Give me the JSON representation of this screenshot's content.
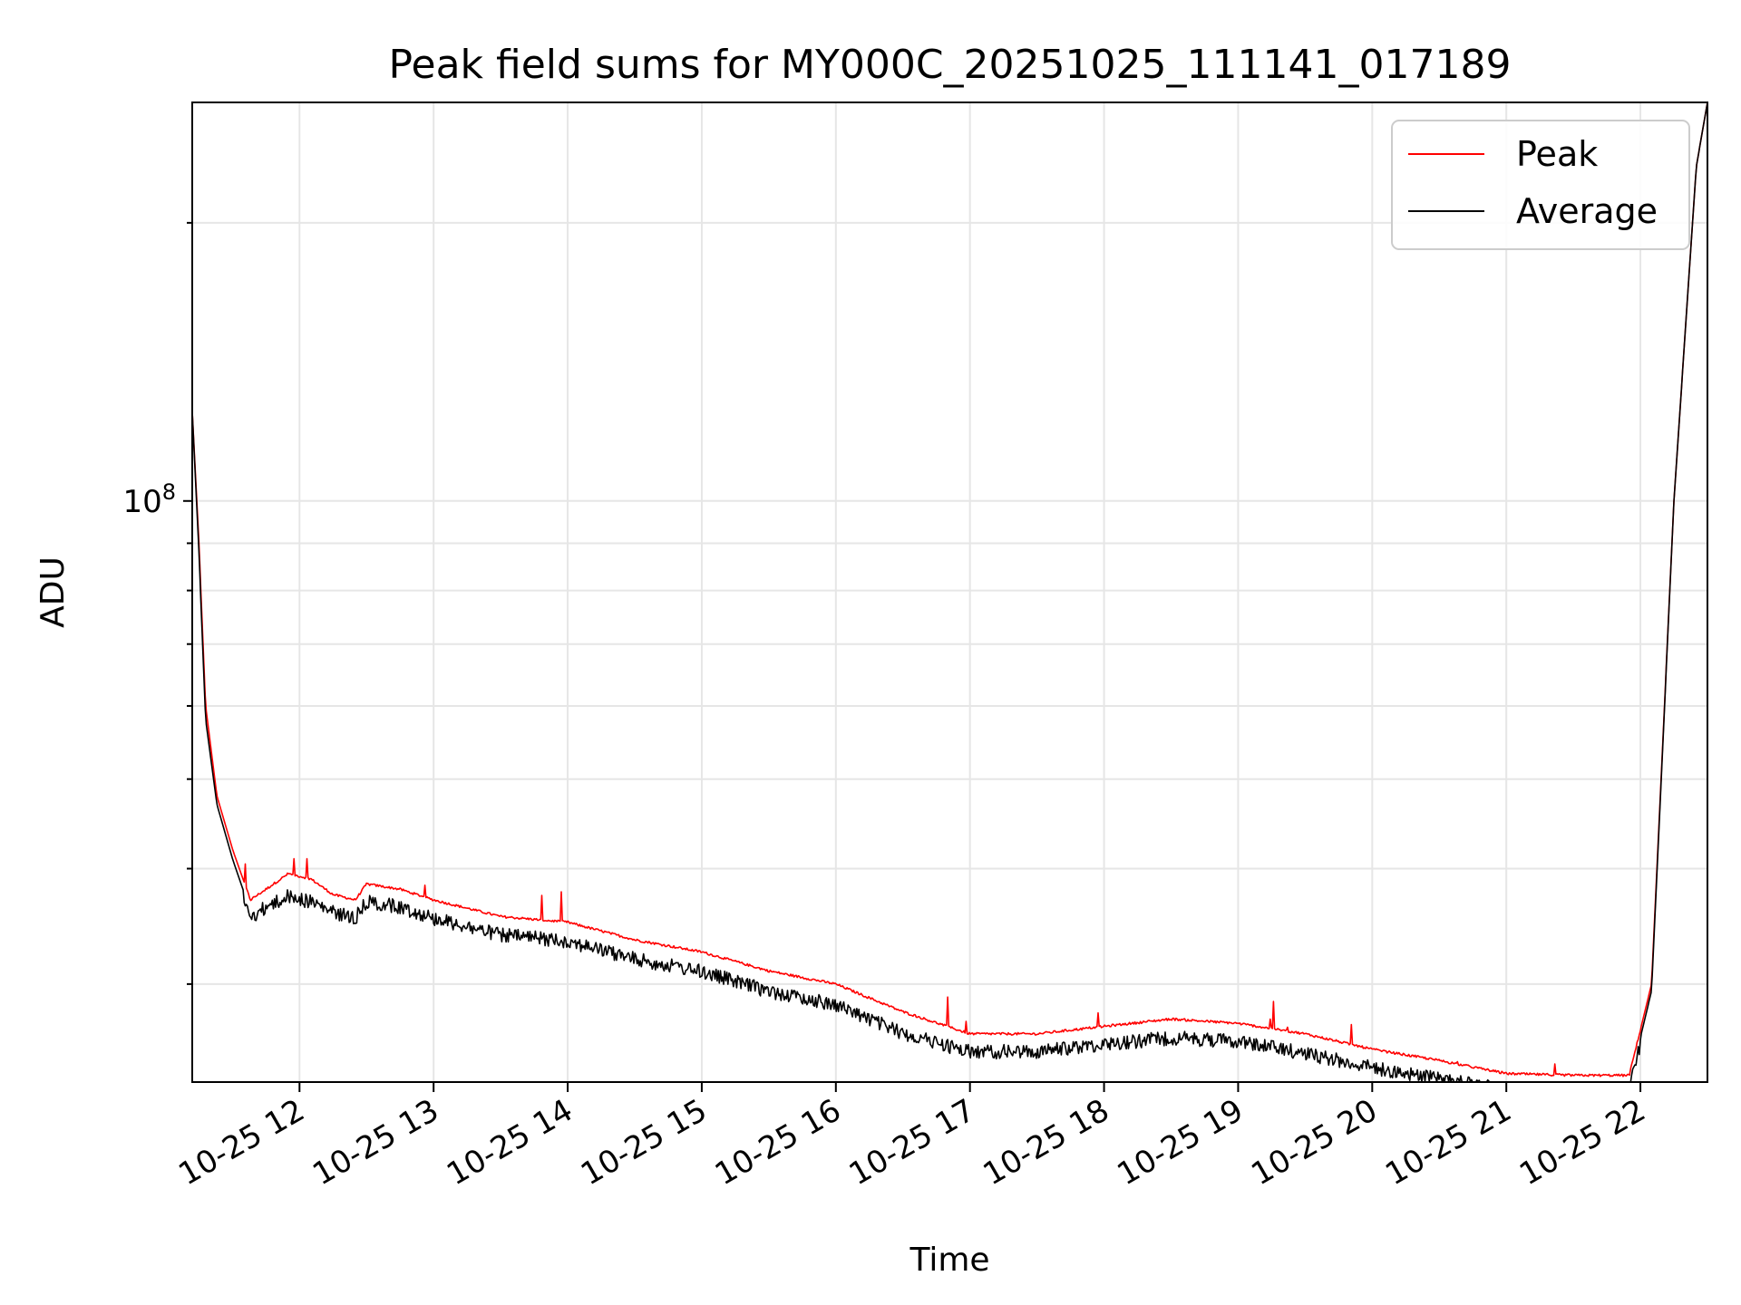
{
  "chart_data": {
    "type": "line",
    "title": "Peak field sums for MY000C_20251025_111141_017189",
    "xlabel": "Time",
    "ylabel": "ADU",
    "y_scale": "log",
    "ylim": [
      23500000,
      270000000
    ],
    "xlim": [
      "2025-10-25 11:12",
      "2025-10-25 22:30"
    ],
    "x_ticks": [
      "2025-10-25 12:00",
      "2025-10-25 13:00",
      "2025-10-25 14:00",
      "2025-10-25 15:00",
      "2025-10-25 16:00",
      "2025-10-25 17:00",
      "2025-10-25 18:00",
      "2025-10-25 19:00",
      "2025-10-25 20:00",
      "2025-10-25 21:00",
      "2025-10-25 22:00"
    ],
    "x_tick_labels": [
      "10-25 12",
      "10-25 13",
      "10-25 14",
      "10-25 15",
      "10-25 16",
      "10-25 17",
      "10-25 18",
      "10-25 19",
      "10-25 20",
      "10-25 21",
      "10-25 22"
    ],
    "y_tick_label": "10",
    "y_tick_exponent": "8",
    "grid": true,
    "legend_position": "upper right",
    "series": [
      {
        "name": "Peak",
        "color": "#ff0000",
        "x": [
          "2025-10-25 11:12",
          "2025-10-25 11:15",
          "2025-10-25 11:18",
          "2025-10-25 11:23",
          "2025-10-25 11:30",
          "2025-10-25 11:38",
          "2025-10-25 11:45",
          "2025-10-25 11:55",
          "2025-10-25 12:05",
          "2025-10-25 12:15",
          "2025-10-25 12:25",
          "2025-10-25 12:30",
          "2025-10-25 12:45",
          "2025-10-25 13:00",
          "2025-10-25 13:30",
          "2025-10-25 14:00",
          "2025-10-25 14:30",
          "2025-10-25 15:00",
          "2025-10-25 15:30",
          "2025-10-25 16:00",
          "2025-10-25 16:30",
          "2025-10-25 17:00",
          "2025-10-25 17:30",
          "2025-10-25 18:00",
          "2025-10-25 18:30",
          "2025-10-25 19:00",
          "2025-10-25 19:30",
          "2025-10-25 20:00",
          "2025-10-25 20:30",
          "2025-10-25 21:00",
          "2025-10-25 21:30",
          "2025-10-25 21:55",
          "2025-10-25 22:05",
          "2025-10-25 22:15",
          "2025-10-25 22:25",
          "2025-10-25 22:30"
        ],
        "y": [
          125000000,
          90000000,
          60000000,
          48000000,
          42000000,
          37000000,
          38000000,
          39500000,
          39000000,
          37500000,
          37000000,
          38500000,
          38000000,
          37000000,
          35500000,
          35000000,
          33500000,
          32500000,
          31000000,
          30000000,
          28000000,
          26500000,
          26500000,
          27000000,
          27500000,
          27200000,
          26500000,
          25500000,
          24800000,
          24000000,
          23900000,
          23900000,
          30000000,
          100000000,
          230000000,
          270000000
        ]
      },
      {
        "name": "Average",
        "color": "#000000",
        "x": [
          "2025-10-25 11:12",
          "2025-10-25 11:15",
          "2025-10-25 11:18",
          "2025-10-25 11:23",
          "2025-10-25 11:30",
          "2025-10-25 11:38",
          "2025-10-25 11:45",
          "2025-10-25 11:55",
          "2025-10-25 12:05",
          "2025-10-25 12:15",
          "2025-10-25 12:25",
          "2025-10-25 12:30",
          "2025-10-25 12:45",
          "2025-10-25 13:00",
          "2025-10-25 13:30",
          "2025-10-25 14:00",
          "2025-10-25 14:30",
          "2025-10-25 15:00",
          "2025-10-25 15:30",
          "2025-10-25 16:00",
          "2025-10-25 16:30",
          "2025-10-25 17:00",
          "2025-10-25 17:30",
          "2025-10-25 18:00",
          "2025-10-25 18:30",
          "2025-10-25 19:00",
          "2025-10-25 19:30",
          "2025-10-25 20:00",
          "2025-10-25 20:30",
          "2025-10-25 21:00",
          "2025-10-25 21:30",
          "2025-10-25 21:55",
          "2025-10-25 22:05",
          "2025-10-25 22:15",
          "2025-10-25 22:25",
          "2025-10-25 22:30"
        ],
        "y": [
          125000000,
          88000000,
          58000000,
          47000000,
          41000000,
          36000000,
          37000000,
          38000000,
          37500000,
          36500000,
          36000000,
          37500000,
          37000000,
          36000000,
          34500000,
          34000000,
          32500000,
          31500000,
          30000000,
          29000000,
          27000000,
          25800000,
          25800000,
          26300000,
          26700000,
          26500000,
          25700000,
          24800000,
          24100000,
          23500000,
          23400000,
          23400000,
          29500000,
          100000000,
          230000000,
          270000000
        ]
      }
    ]
  }
}
